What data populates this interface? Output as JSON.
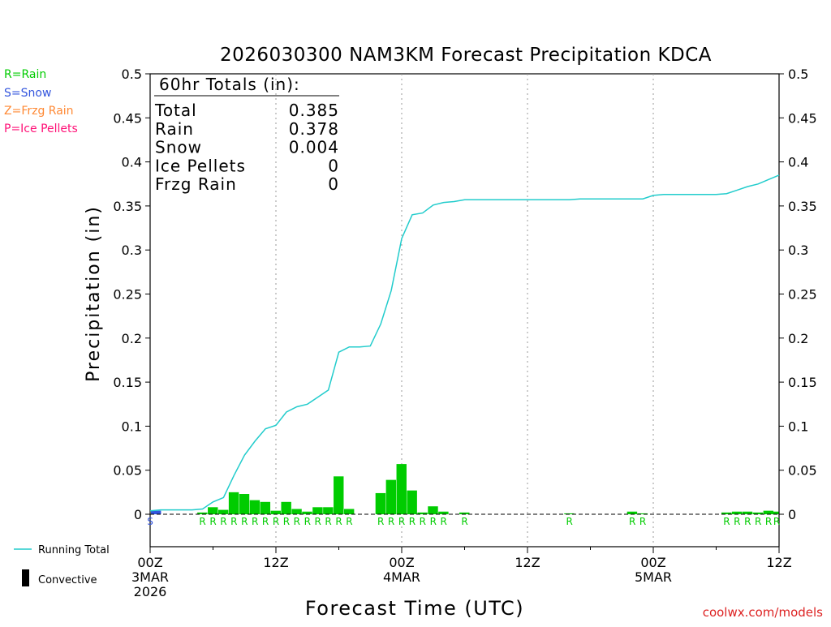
{
  "colors": {
    "rain": "#00cc00",
    "snow": "#3355dd",
    "frzg_rain": "#ff8833",
    "ice_pellets": "#ff1177",
    "running_total": "#22cccc",
    "text": "#000000",
    "link": "#dd2222"
  },
  "legend_types": [
    "R=Rain",
    "S=Snow",
    "Z=Frzg Rain",
    "P=Ice Pellets"
  ],
  "series_legend": {
    "running_total": "Running Total",
    "convective": "Convective"
  },
  "totals_box": {
    "title": "60hr Totals (in):",
    "rows": [
      {
        "label": "Total",
        "value": "0.385"
      },
      {
        "label": "Rain",
        "value": "0.378"
      },
      {
        "label": "Snow",
        "value": "0.004"
      },
      {
        "label": "Ice Pellets",
        "value": "0"
      },
      {
        "label": "Frzg Rain",
        "value": "0"
      }
    ]
  },
  "credit": "coolwx.com/models",
  "chart_data": {
    "type": "bar",
    "title": "2026030300 NAM3KM Forecast Precipitation KDCA",
    "xlabel": "Forecast Time (UTC)",
    "ylabel": "Precipitation (in)",
    "xlim": [
      0,
      60
    ],
    "ylim": [
      0,
      0.5
    ],
    "yticks": [
      0,
      0.05,
      0.1,
      0.15,
      0.2,
      0.25,
      0.3,
      0.35,
      0.4,
      0.45,
      0.5
    ],
    "ytick_labels": [
      "0",
      "0.05",
      "0.1",
      "0.15",
      "0.2",
      "0.25",
      "0.3",
      "0.35",
      "0.4",
      "0.45",
      "0.5"
    ],
    "xticks": [
      {
        "hour": 0,
        "lines": [
          "00Z",
          "3MAR",
          "2026"
        ]
      },
      {
        "hour": 12,
        "lines": [
          "12Z"
        ]
      },
      {
        "hour": 24,
        "lines": [
          "00Z",
          "4MAR"
        ]
      },
      {
        "hour": 36,
        "lines": [
          "12Z"
        ]
      },
      {
        "hour": 48,
        "lines": [
          "00Z",
          "5MAR"
        ]
      },
      {
        "hour": 60,
        "lines": [
          "12Z"
        ]
      }
    ],
    "grid": "vertical dotted at 12h",
    "bars": [
      {
        "hour": 0,
        "value": 0.004,
        "type": "S"
      },
      {
        "hour": 5,
        "value": 0.002,
        "type": "R"
      },
      {
        "hour": 6,
        "value": 0.008,
        "type": "R"
      },
      {
        "hour": 7,
        "value": 0.005,
        "type": "R"
      },
      {
        "hour": 8,
        "value": 0.025,
        "type": "R"
      },
      {
        "hour": 9,
        "value": 0.023,
        "type": "R"
      },
      {
        "hour": 10,
        "value": 0.016,
        "type": "R"
      },
      {
        "hour": 11,
        "value": 0.014,
        "type": "R"
      },
      {
        "hour": 12,
        "value": 0.004,
        "type": "R"
      },
      {
        "hour": 13,
        "value": 0.014,
        "type": "R"
      },
      {
        "hour": 14,
        "value": 0.006,
        "type": "R"
      },
      {
        "hour": 15,
        "value": 0.003,
        "type": "R"
      },
      {
        "hour": 16,
        "value": 0.008,
        "type": "R"
      },
      {
        "hour": 17,
        "value": 0.008,
        "type": "R"
      },
      {
        "hour": 18,
        "value": 0.043,
        "type": "R"
      },
      {
        "hour": 19,
        "value": 0.006,
        "type": "R"
      },
      {
        "hour": 22,
        "value": 0.024,
        "type": "R"
      },
      {
        "hour": 23,
        "value": 0.039,
        "type": "R"
      },
      {
        "hour": 24,
        "value": 0.057,
        "type": "R"
      },
      {
        "hour": 25,
        "value": 0.027,
        "type": "R"
      },
      {
        "hour": 26,
        "value": 0.002,
        "type": "R"
      },
      {
        "hour": 27,
        "value": 0.009,
        "type": "R"
      },
      {
        "hour": 28,
        "value": 0.003,
        "type": "R"
      },
      {
        "hour": 30,
        "value": 0.002,
        "type": "R"
      },
      {
        "hour": 40,
        "value": 0.001,
        "type": "R"
      },
      {
        "hour": 46,
        "value": 0.003,
        "type": "R"
      },
      {
        "hour": 47,
        "value": 0.001,
        "type": "R"
      },
      {
        "hour": 55,
        "value": 0.002,
        "type": "R"
      },
      {
        "hour": 56,
        "value": 0.003,
        "type": "R"
      },
      {
        "hour": 57,
        "value": 0.003,
        "type": "R"
      },
      {
        "hour": 58,
        "value": 0.002,
        "type": "R"
      },
      {
        "hour": 59,
        "value": 0.004,
        "type": "R"
      },
      {
        "hour": 60,
        "value": 0.003,
        "type": "R"
      }
    ],
    "running_total": {
      "x": [
        0,
        1,
        2,
        3,
        4,
        5,
        6,
        7,
        8,
        9,
        10,
        11,
        12,
        13,
        14,
        15,
        16,
        17,
        18,
        19,
        20,
        21,
        22,
        23,
        24,
        25,
        26,
        27,
        28,
        29,
        30,
        31,
        32,
        33,
        34,
        35,
        36,
        37,
        38,
        39,
        40,
        41,
        42,
        43,
        44,
        45,
        46,
        47,
        48,
        49,
        50,
        51,
        52,
        53,
        54,
        55,
        56,
        57,
        58,
        59,
        60
      ],
      "y": [
        0.004,
        0.005,
        0.005,
        0.005,
        0.005,
        0.006,
        0.014,
        0.019,
        0.044,
        0.067,
        0.083,
        0.097,
        0.101,
        0.116,
        0.122,
        0.125,
        0.133,
        0.141,
        0.184,
        0.19,
        0.19,
        0.191,
        0.216,
        0.254,
        0.313,
        0.34,
        0.342,
        0.351,
        0.354,
        0.355,
        0.357,
        0.357,
        0.357,
        0.357,
        0.357,
        0.357,
        0.357,
        0.357,
        0.357,
        0.357,
        0.357,
        0.358,
        0.358,
        0.358,
        0.358,
        0.358,
        0.358,
        0.358,
        0.362,
        0.363,
        0.363,
        0.363,
        0.363,
        0.363,
        0.363,
        0.364,
        0.368,
        0.372,
        0.375,
        0.38,
        0.385
      ]
    }
  }
}
